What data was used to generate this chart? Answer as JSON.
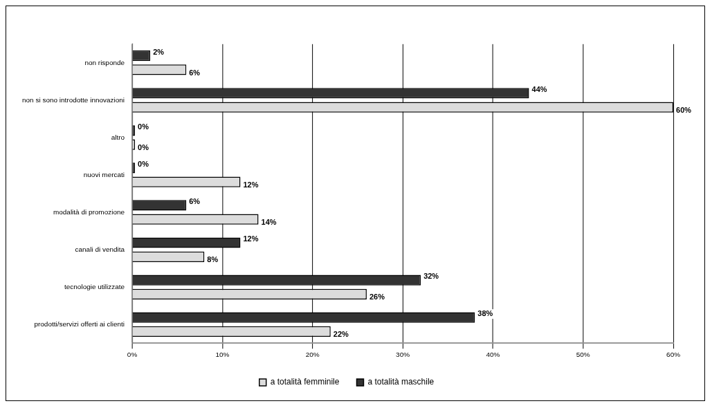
{
  "chart_data": {
    "type": "bar",
    "orientation": "horizontal",
    "categories": [
      "non risponde",
      "non si sono introdotte innovazioni",
      "altro",
      "nuovi mercati",
      "modalità di promozione",
      "canali di vendita",
      "tecnologie utilizzate",
      "prodotti/servizi offerti ai clienti"
    ],
    "series": [
      {
        "name": "a totalità maschile",
        "color": "#333333",
        "values": [
          2,
          44,
          0,
          0,
          6,
          12,
          32,
          38
        ],
        "value_labels": [
          "2%",
          "44%",
          "0%",
          "0%",
          "6%",
          "12%",
          "32%",
          "38%"
        ]
      },
      {
        "name": "a totalità femminile",
        "color": "#dcdcdc",
        "values": [
          6,
          60,
          0,
          12,
          14,
          8,
          26,
          22
        ],
        "value_labels": [
          "6%",
          "60%",
          "0%",
          "12%",
          "14%",
          "8%",
          "26%",
          "22%"
        ]
      }
    ],
    "xlim": [
      0,
      60
    ],
    "xticks": [
      {
        "value": 0,
        "label": "0%"
      },
      {
        "value": 10,
        "label": "10%"
      },
      {
        "value": 20,
        "label": "20%"
      },
      {
        "value": 30,
        "label": "30%"
      },
      {
        "value": 40,
        "label": "40%"
      },
      {
        "value": 50,
        "label": "50%"
      },
      {
        "value": 60,
        "label": "60%"
      }
    ],
    "grid": "x",
    "legend": "bottom"
  }
}
